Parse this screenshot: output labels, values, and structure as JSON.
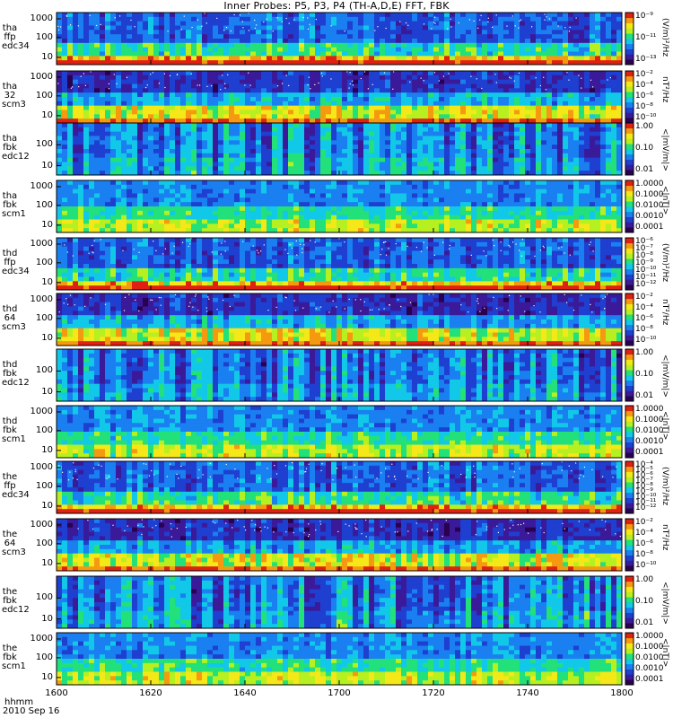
{
  "title": "Inner Probes: P5, P3, P4 (TH-A,D,E) FFT, FBK",
  "colors": {
    "scale": [
      "#2a0050",
      "#3b1a9a",
      "#1e3fd0",
      "#1a7ff0",
      "#12c8e8",
      "#22e07a",
      "#b6f020",
      "#f4e818",
      "#f59a10",
      "#e02010"
    ],
    "background": "#ffffff",
    "axis": "#000000"
  },
  "chart_data": [
    {
      "type": "heatmap",
      "ylabel": [
        "tha",
        "ffp",
        "edc34"
      ],
      "yticks": [
        "1000",
        "100",
        "10"
      ],
      "ylog": true,
      "cbar_ticks": [
        "10⁻⁹",
        "10⁻¹¹",
        "10⁻¹³"
      ],
      "cbar_unit": "(V/m)²/Hz",
      "intensity_profile": "fft_e"
    },
    {
      "type": "heatmap",
      "ylabel": [
        "tha",
        "32",
        "scm3"
      ],
      "yticks": [
        "1000",
        "100",
        "10"
      ],
      "ylog": true,
      "cbar_ticks": [
        "10⁻²",
        "10⁻⁴",
        "10⁻⁶",
        "10⁻⁸",
        "10⁻¹⁰"
      ],
      "cbar_unit": "nT²/Hz",
      "intensity_profile": "fft_b"
    },
    {
      "type": "heatmap",
      "ylabel": [
        "tha",
        "fbk",
        "edc12"
      ],
      "yticks": [
        "100",
        "10"
      ],
      "ylog": true,
      "cbar_ticks": [
        "1.00",
        "0.10",
        "0.01"
      ],
      "cbar_unit": "<|mV/m|>",
      "intensity_profile": "fbk_e"
    },
    {
      "type": "heatmap",
      "ylabel": [
        "tha",
        "fbk",
        "scm1"
      ],
      "yticks": [
        "1000",
        "100",
        "10"
      ],
      "ylog": true,
      "cbar_ticks": [
        "1.0000",
        "0.1000",
        "0.0100",
        "0.0010",
        "0.0001"
      ],
      "cbar_unit": "<|nT|>",
      "intensity_profile": "fbk_b"
    },
    {
      "type": "heatmap",
      "ylabel": [
        "thd",
        "ffp",
        "edc34"
      ],
      "yticks": [
        "1000",
        "100",
        "10"
      ],
      "ylog": true,
      "cbar_ticks": [
        "10⁻⁶",
        "10⁻⁷",
        "10⁻⁸",
        "10⁻⁹",
        "10⁻¹⁰",
        "10⁻¹¹",
        "10⁻¹²"
      ],
      "cbar_unit": "(V/m)²/Hz",
      "intensity_profile": "fft_e"
    },
    {
      "type": "heatmap",
      "ylabel": [
        "thd",
        "64",
        "scm3"
      ],
      "yticks": [
        "1000",
        "100",
        "10"
      ],
      "ylog": true,
      "cbar_ticks": [
        "10⁻²",
        "10⁻⁴",
        "10⁻⁶",
        "10⁻⁸",
        "10⁻¹⁰"
      ],
      "cbar_unit": "nT²/Hz",
      "intensity_profile": "fft_b"
    },
    {
      "type": "heatmap",
      "ylabel": [
        "thd",
        "fbk",
        "edc12"
      ],
      "yticks": [
        "100",
        "10"
      ],
      "ylog": true,
      "cbar_ticks": [
        "1.00",
        "0.10",
        "0.01"
      ],
      "cbar_unit": "<|mV/m|>",
      "intensity_profile": "fbk_e"
    },
    {
      "type": "heatmap",
      "ylabel": [
        "thd",
        "fbk",
        "scm1"
      ],
      "yticks": [
        "1000",
        "100",
        "10"
      ],
      "ylog": true,
      "cbar_ticks": [
        "1.0000",
        "0.1000",
        "0.0100",
        "0.0010",
        "0.0001"
      ],
      "cbar_unit": "<|nT|>",
      "intensity_profile": "fbk_b"
    },
    {
      "type": "heatmap",
      "ylabel": [
        "the",
        "ffp",
        "edc34"
      ],
      "yticks": [
        "1000",
        "100",
        "10"
      ],
      "ylog": true,
      "cbar_ticks": [
        "10⁻⁴",
        "10⁻⁵",
        "10⁻⁶",
        "10⁻⁷",
        "10⁻⁸",
        "10⁻⁹",
        "10⁻¹⁰",
        "10⁻¹¹",
        "10⁻¹²"
      ],
      "cbar_unit": "(V/m)²/Hz",
      "intensity_profile": "fft_e"
    },
    {
      "type": "heatmap",
      "ylabel": [
        "the",
        "64",
        "scm3"
      ],
      "yticks": [
        "1000",
        "100",
        "10"
      ],
      "ylog": true,
      "cbar_ticks": [
        "10⁻²",
        "10⁻⁴",
        "10⁻⁶",
        "10⁻⁸",
        "10⁻¹⁰"
      ],
      "cbar_unit": "nT²/Hz",
      "intensity_profile": "fft_b"
    },
    {
      "type": "heatmap",
      "ylabel": [
        "the",
        "fbk",
        "edc12"
      ],
      "yticks": [
        "100",
        "10"
      ],
      "ylog": true,
      "cbar_ticks": [
        "1.00",
        "0.10",
        "0.01"
      ],
      "cbar_unit": "<|mV/m|>",
      "intensity_profile": "fbk_e"
    },
    {
      "type": "heatmap",
      "ylabel": [
        "the",
        "fbk",
        "scm1"
      ],
      "yticks": [
        "1000",
        "100",
        "10"
      ],
      "ylog": true,
      "cbar_ticks": [
        "1.0000",
        "0.1000",
        "0.0100",
        "0.0010",
        "0.0001"
      ],
      "cbar_unit": "<|nT|>",
      "intensity_profile": "fbk_b"
    }
  ],
  "xaxis": {
    "ticks": [
      "1600",
      "1620",
      "1640",
      "1700",
      "1720",
      "1740",
      "1800"
    ],
    "label": "hhmm",
    "date": "2010 Sep 16"
  }
}
